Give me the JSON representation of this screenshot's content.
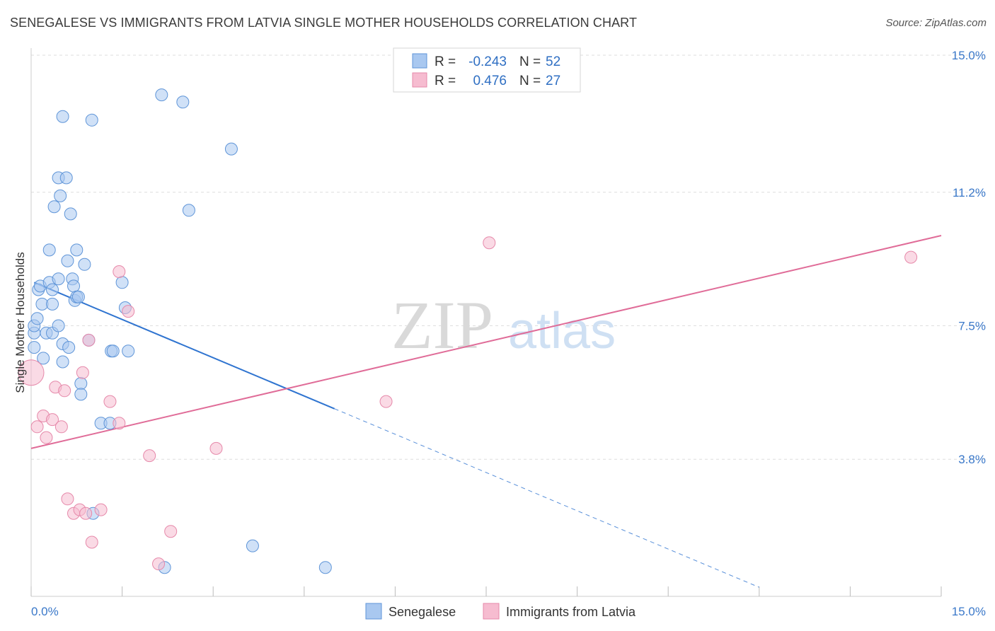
{
  "title": "SENEGALESE VS IMMIGRANTS FROM LATVIA SINGLE MOTHER HOUSEHOLDS CORRELATION CHART",
  "source": "Source: ZipAtlas.com",
  "watermark": {
    "zip": "ZIP",
    "atlas": "atlas"
  },
  "colors": {
    "blue_fill": "#a9c8f0",
    "blue_stroke": "#5f95d8",
    "blue_line": "#2f74d0",
    "pink_fill": "#f6bcd0",
    "pink_stroke": "#e689aa",
    "pink_line": "#e06c98",
    "tick_text": "#3a78c9",
    "grid": "#dedede"
  },
  "legend": {
    "rows": [
      {
        "r_label": "R =",
        "r_value": "-0.243",
        "n_label": "N =",
        "n_value": "52",
        "series": "blue"
      },
      {
        "r_label": "R =",
        "r_value": "0.476",
        "n_label": "N =",
        "n_value": "27",
        "series": "pink"
      }
    ]
  },
  "chart_data": {
    "type": "scatter",
    "title": "SENEGALESE VS IMMIGRANTS FROM LATVIA SINGLE MOTHER HOUSEHOLDS CORRELATION CHART",
    "xlabel": "",
    "ylabel": "Single Mother Households",
    "xlim": [
      0,
      15
    ],
    "ylim": [
      0,
      15
    ],
    "x_tick_labels": [
      "0.0%",
      "15.0%"
    ],
    "y_ticks": [
      3.8,
      7.5,
      11.2,
      15.0
    ],
    "y_tick_labels": [
      "3.8%",
      "7.5%",
      "11.2%",
      "15.0%"
    ],
    "grid": true,
    "series": [
      {
        "name": "Senegalese",
        "color": "blue",
        "r": -0.243,
        "n": 52,
        "trend": {
          "x0": 0.05,
          "y0": 8.7,
          "x1": 5.0,
          "y1": 5.2,
          "dash_to_x": 12.0
        },
        "points": [
          [
            0.05,
            6.9
          ],
          [
            0.05,
            7.3
          ],
          [
            0.05,
            7.5
          ],
          [
            0.1,
            7.7
          ],
          [
            0.12,
            8.5
          ],
          [
            0.15,
            8.6
          ],
          [
            0.18,
            8.1
          ],
          [
            0.2,
            6.6
          ],
          [
            0.25,
            7.3
          ],
          [
            0.3,
            8.7
          ],
          [
            0.3,
            9.6
          ],
          [
            0.35,
            8.5
          ],
          [
            0.35,
            7.3
          ],
          [
            0.35,
            8.1
          ],
          [
            0.38,
            10.8
          ],
          [
            0.45,
            8.8
          ],
          [
            0.45,
            7.5
          ],
          [
            0.45,
            11.6
          ],
          [
            0.48,
            11.1
          ],
          [
            0.52,
            7.0
          ],
          [
            0.52,
            13.3
          ],
          [
            0.52,
            6.5
          ],
          [
            0.58,
            11.6
          ],
          [
            0.6,
            9.3
          ],
          [
            0.62,
            6.9
          ],
          [
            0.65,
            10.6
          ],
          [
            0.68,
            8.8
          ],
          [
            0.7,
            8.6
          ],
          [
            0.72,
            8.2
          ],
          [
            0.75,
            9.6
          ],
          [
            0.75,
            8.3
          ],
          [
            0.78,
            8.3
          ],
          [
            0.82,
            5.9
          ],
          [
            0.82,
            5.6
          ],
          [
            0.88,
            9.2
          ],
          [
            0.95,
            7.1
          ],
          [
            1.0,
            13.2
          ],
          [
            1.02,
            2.3
          ],
          [
            1.15,
            4.8
          ],
          [
            1.3,
            4.8
          ],
          [
            1.32,
            6.8
          ],
          [
            1.35,
            6.8
          ],
          [
            1.5,
            8.7
          ],
          [
            1.55,
            8.0
          ],
          [
            1.6,
            6.8
          ],
          [
            2.15,
            13.9
          ],
          [
            2.2,
            0.8
          ],
          [
            2.5,
            13.7
          ],
          [
            2.6,
            10.7
          ],
          [
            3.3,
            12.4
          ],
          [
            3.65,
            1.4
          ],
          [
            4.85,
            0.8
          ]
        ]
      },
      {
        "name": "Immigrants from Latvia",
        "color": "pink",
        "r": 0.476,
        "n": 27,
        "trend": {
          "x0": 0.0,
          "y0": 4.1,
          "x1": 15.0,
          "y1": 10.0
        },
        "points": [
          [
            0.0,
            6.2
          ],
          [
            0.1,
            4.7
          ],
          [
            0.2,
            5.0
          ],
          [
            0.25,
            4.4
          ],
          [
            0.35,
            4.9
          ],
          [
            0.4,
            5.8
          ],
          [
            0.5,
            4.7
          ],
          [
            0.55,
            5.7
          ],
          [
            0.6,
            2.7
          ],
          [
            0.7,
            2.3
          ],
          [
            0.8,
            2.4
          ],
          [
            0.85,
            6.2
          ],
          [
            0.9,
            2.3
          ],
          [
            0.95,
            7.1
          ],
          [
            1.0,
            1.5
          ],
          [
            1.15,
            2.4
          ],
          [
            1.3,
            5.4
          ],
          [
            1.45,
            9.0
          ],
          [
            1.45,
            4.8
          ],
          [
            1.6,
            7.9
          ],
          [
            1.95,
            3.9
          ],
          [
            2.1,
            0.9
          ],
          [
            2.3,
            1.8
          ],
          [
            3.05,
            4.1
          ],
          [
            5.85,
            5.4
          ],
          [
            7.55,
            9.8
          ],
          [
            14.5,
            9.4
          ]
        ]
      }
    ]
  }
}
